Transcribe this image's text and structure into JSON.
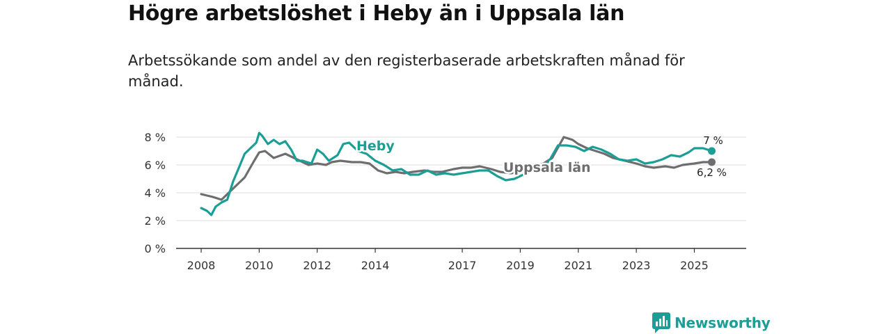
{
  "title": "Högre arbetslöshet i Heby än i Uppsala län",
  "subtitle": "Arbetssökande som andel av den registerbaserade arbetskraften månad för månad.",
  "brand": {
    "name": "Newsworthy",
    "color": "#1a9e96"
  },
  "chart_data": {
    "type": "line",
    "title": "Högre arbetslöshet i Heby än i Uppsala län",
    "xlabel": "",
    "ylabel": "",
    "xlim": [
      2008,
      2025.9
    ],
    "ylim": [
      0,
      9
    ],
    "grid": true,
    "x_ticks": [
      {
        "value": 2008,
        "label": "2008"
      },
      {
        "value": 2010,
        "label": "2010"
      },
      {
        "value": 2012,
        "label": "2012"
      },
      {
        "value": 2014,
        "label": "2014"
      },
      {
        "value": 2017,
        "label": "2017"
      },
      {
        "value": 2019,
        "label": "2019"
      },
      {
        "value": 2021,
        "label": "2021"
      },
      {
        "value": 2023,
        "label": "2023"
      },
      {
        "value": 2025,
        "label": "2025"
      }
    ],
    "y_ticks": [
      {
        "value": 0,
        "label": "0 %"
      },
      {
        "value": 2,
        "label": "2 %"
      },
      {
        "value": 4,
        "label": "4 %"
      },
      {
        "value": 6,
        "label": "6 %"
      },
      {
        "value": 8,
        "label": "8 %"
      }
    ],
    "series": [
      {
        "name": "Uppsala län",
        "color": "#6e6e70",
        "end_label": "6,2 %",
        "x": [
          2008.0,
          2008.4,
          2008.7,
          2008.9,
          2009.2,
          2009.5,
          2009.8,
          2010.0,
          2010.2,
          2010.5,
          2010.9,
          2011.2,
          2011.4,
          2011.7,
          2012.0,
          2012.3,
          2012.5,
          2012.8,
          2013.2,
          2013.5,
          2013.8,
          2014.1,
          2014.4,
          2014.7,
          2015.0,
          2015.3,
          2015.7,
          2016.0,
          2016.3,
          2016.7,
          2017.0,
          2017.3,
          2017.6,
          2018.0,
          2018.3,
          2018.7,
          2019.0,
          2019.4,
          2019.8,
          2020.1,
          2020.5,
          2020.8,
          2021.0,
          2021.3,
          2021.6,
          2021.9,
          2022.2,
          2022.6,
          2023.0,
          2023.3,
          2023.6,
          2024.0,
          2024.3,
          2024.6,
          2025.0,
          2025.3,
          2025.6
        ],
        "values": [
          3.9,
          3.7,
          3.5,
          3.9,
          4.5,
          5.1,
          6.2,
          6.9,
          7.0,
          6.5,
          6.8,
          6.5,
          6.3,
          6.0,
          6.1,
          6.0,
          6.2,
          6.3,
          6.2,
          6.2,
          6.1,
          5.6,
          5.4,
          5.5,
          5.4,
          5.5,
          5.6,
          5.5,
          5.5,
          5.7,
          5.8,
          5.8,
          5.9,
          5.7,
          5.5,
          5.4,
          5.6,
          5.9,
          6.1,
          6.5,
          8.0,
          7.8,
          7.5,
          7.2,
          7.0,
          6.8,
          6.5,
          6.3,
          6.1,
          5.9,
          5.8,
          5.9,
          5.8,
          6.0,
          6.1,
          6.2,
          6.2
        ]
      },
      {
        "name": "Heby",
        "color": "#1a9e96",
        "end_label": "7 %",
        "x": [
          2008.0,
          2008.2,
          2008.35,
          2008.5,
          2008.7,
          2008.9,
          2009.1,
          2009.3,
          2009.5,
          2009.7,
          2009.9,
          2010.0,
          2010.1,
          2010.3,
          2010.5,
          2010.7,
          2010.9,
          2011.1,
          2011.3,
          2011.5,
          2011.8,
          2012.0,
          2012.2,
          2012.4,
          2012.7,
          2012.9,
          2013.1,
          2013.4,
          2013.7,
          2014.0,
          2014.3,
          2014.6,
          2014.9,
          2015.2,
          2015.5,
          2015.8,
          2016.1,
          2016.4,
          2016.7,
          2017.0,
          2017.3,
          2017.6,
          2017.9,
          2018.2,
          2018.5,
          2018.8,
          2019.1,
          2019.5,
          2019.8,
          2020.0,
          2020.3,
          2020.6,
          2020.9,
          2021.2,
          2021.5,
          2021.8,
          2022.1,
          2022.4,
          2022.7,
          2023.0,
          2023.3,
          2023.6,
          2023.9,
          2024.2,
          2024.5,
          2024.8,
          2025.0,
          2025.3,
          2025.6
        ],
        "values": [
          2.9,
          2.7,
          2.4,
          3.0,
          3.3,
          3.5,
          4.8,
          5.8,
          6.8,
          7.2,
          7.6,
          8.3,
          8.1,
          7.5,
          7.8,
          7.5,
          7.7,
          7.1,
          6.3,
          6.3,
          6.1,
          7.1,
          6.8,
          6.3,
          6.7,
          7.5,
          7.6,
          7.0,
          6.8,
          6.3,
          6.0,
          5.6,
          5.7,
          5.3,
          5.3,
          5.6,
          5.3,
          5.4,
          5.3,
          5.4,
          5.5,
          5.6,
          5.6,
          5.2,
          4.9,
          5.0,
          5.3,
          5.6,
          5.9,
          6.3,
          7.4,
          7.4,
          7.3,
          7.0,
          7.3,
          7.1,
          6.8,
          6.4,
          6.3,
          6.4,
          6.1,
          6.2,
          6.4,
          6.7,
          6.6,
          6.9,
          7.2,
          7.2,
          7.0
        ]
      }
    ]
  }
}
